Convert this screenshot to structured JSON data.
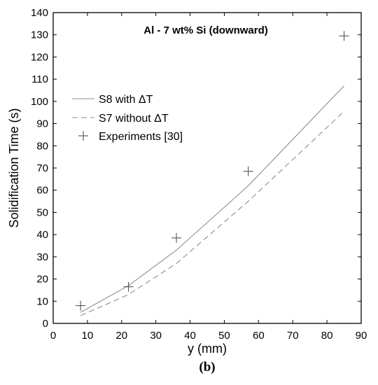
{
  "chart_data": {
    "type": "line",
    "title": "Al - 7 wt% Si (downward)",
    "xlabel": "y (mm)",
    "ylabel": "Solidification Time (s)",
    "xlim": [
      0,
      90
    ],
    "ylim": [
      0,
      140
    ],
    "xticks": [
      0,
      10,
      20,
      30,
      40,
      50,
      60,
      70,
      80,
      90
    ],
    "yticks": [
      0,
      10,
      20,
      30,
      40,
      50,
      60,
      70,
      80,
      90,
      100,
      110,
      120,
      130,
      140
    ],
    "grid": false,
    "legend_position": "upper-left",
    "series": [
      {
        "name": "S8 with ΔT",
        "style": "solid",
        "color": "#8c8c8c",
        "x": [
          8,
          22,
          36,
          57,
          85
        ],
        "y": [
          5,
          17,
          33,
          62,
          107
        ]
      },
      {
        "name": "S7 without ΔT",
        "style": "dashed",
        "color": "#8c8c8c",
        "x": [
          8,
          22,
          36,
          57,
          85
        ],
        "y": [
          3.5,
          13,
          27,
          55,
          95.5
        ]
      },
      {
        "name": "Experiments [30]",
        "style": "marker-plus",
        "color": "#555555",
        "x": [
          8,
          22,
          36,
          57,
          85
        ],
        "y": [
          8,
          16.5,
          38.5,
          68.5,
          129.5
        ]
      }
    ]
  },
  "panel_label": "(b)"
}
